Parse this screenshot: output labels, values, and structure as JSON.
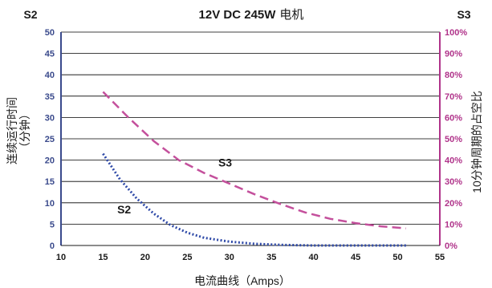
{
  "header": {
    "left_corner": "S2",
    "right_corner": "S3",
    "title_bold": "12V DC 245W",
    "title_suffix": "电机"
  },
  "colors": {
    "left_axis": "#3a4a8c",
    "right_axis": "#b0338a",
    "s2_line": "#2f4aa8",
    "s3_line": "#c4509c",
    "grid": "#000000"
  },
  "chart_data": {
    "type": "line",
    "title": "12V DC 245W 电机",
    "xlabel": "电流曲线（Amps）",
    "ylabel_left": "连续运行时间（分钟）",
    "ylabel_right": "10分钟周期的占空比",
    "xlim": [
      10,
      55
    ],
    "x_ticks": [
      "10",
      "15",
      "20",
      "25",
      "30",
      "35",
      "40",
      "45",
      "50",
      "55"
    ],
    "ylim_left": [
      0,
      50
    ],
    "y_ticks_left": [
      "0",
      "5",
      "10",
      "15",
      "20",
      "25",
      "30",
      "35",
      "40",
      "45",
      "50"
    ],
    "ylim_right": [
      0,
      100
    ],
    "y_ticks_right": [
      "0%",
      "10%",
      "20%",
      "30%",
      "40%",
      "50%",
      "60%",
      "70%",
      "80%",
      "90%",
      "100%"
    ],
    "grid": "horizontal",
    "series": [
      {
        "name": "S2",
        "axis": "left",
        "style": "dotted",
        "x": [
          15,
          17,
          19,
          21,
          23,
          25,
          27,
          30,
          33,
          36,
          40,
          45,
          51
        ],
        "y": [
          21.5,
          15.5,
          11,
          7.5,
          4.8,
          3,
          1.8,
          0.9,
          0.4,
          0.15,
          0,
          0,
          0
        ]
      },
      {
        "name": "S3",
        "axis": "right",
        "style": "dashed",
        "x": [
          15,
          18,
          21,
          24,
          27,
          30,
          33,
          36,
          39,
          42,
          45,
          48,
          51
        ],
        "y": [
          72,
          60,
          49,
          40,
          34,
          29,
          24,
          19.5,
          15.5,
          12.5,
          10.5,
          9,
          8
        ]
      }
    ],
    "annotations": [
      {
        "text": "S3",
        "x": 29.5,
        "y_right": 37
      },
      {
        "text": "S2",
        "x": 17.5,
        "y_left": 7.5
      }
    ]
  }
}
